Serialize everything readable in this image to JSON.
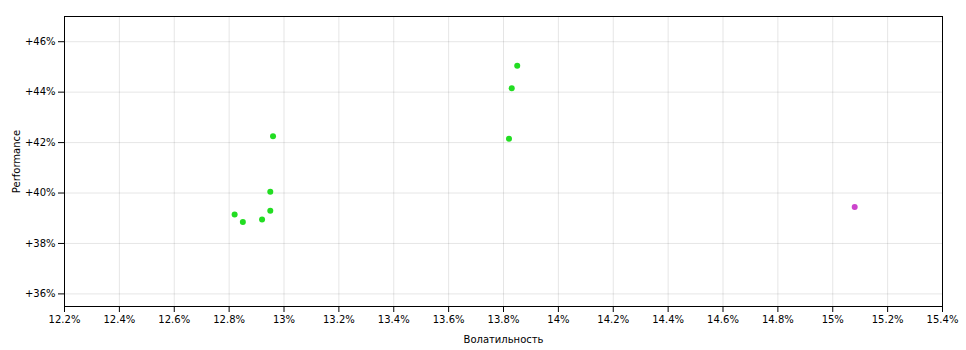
{
  "chart_data": {
    "type": "scatter",
    "xlabel": "Волатильность",
    "ylabel": "Performance",
    "xlim": [
      0.122,
      0.154
    ],
    "ylim": [
      0.355,
      0.47
    ],
    "xticks": [
      {
        "value": 0.122,
        "label": "12.2%"
      },
      {
        "value": 0.124,
        "label": "12.4%"
      },
      {
        "value": 0.126,
        "label": "12.6%"
      },
      {
        "value": 0.128,
        "label": "12.8%"
      },
      {
        "value": 0.13,
        "label": "13%"
      },
      {
        "value": 0.132,
        "label": "13.2%"
      },
      {
        "value": 0.134,
        "label": "13.4%"
      },
      {
        "value": 0.136,
        "label": "13.6%"
      },
      {
        "value": 0.138,
        "label": "13.8%"
      },
      {
        "value": 0.14,
        "label": "14%"
      },
      {
        "value": 0.142,
        "label": "14.2%"
      },
      {
        "value": 0.144,
        "label": "14.4%"
      },
      {
        "value": 0.146,
        "label": "14.6%"
      },
      {
        "value": 0.148,
        "label": "14.8%"
      },
      {
        "value": 0.15,
        "label": "15%"
      },
      {
        "value": 0.152,
        "label": "15.2%"
      },
      {
        "value": 0.154,
        "label": "15.4%"
      }
    ],
    "yticks": [
      {
        "value": 0.36,
        "label": "+36%"
      },
      {
        "value": 0.38,
        "label": "+38%"
      },
      {
        "value": 0.4,
        "label": "+40%"
      },
      {
        "value": 0.42,
        "label": "+42%"
      },
      {
        "value": 0.44,
        "label": "+44%"
      },
      {
        "value": 0.46,
        "label": "+46%"
      }
    ],
    "grid": true,
    "series": [
      {
        "color": "#22dd22",
        "x": [
          0.1282,
          0.1285,
          0.1292,
          0.1295,
          0.1295,
          0.1296,
          0.1382,
          0.1383,
          0.1385
        ],
        "values": [
          0.3915,
          0.3885,
          0.3895,
          0.393,
          0.4005,
          0.4225,
          0.4215,
          0.4415,
          0.4505
        ]
      },
      {
        "color": "#cc44cc",
        "x": [
          0.1508
        ],
        "values": [
          0.3945
        ]
      }
    ]
  }
}
